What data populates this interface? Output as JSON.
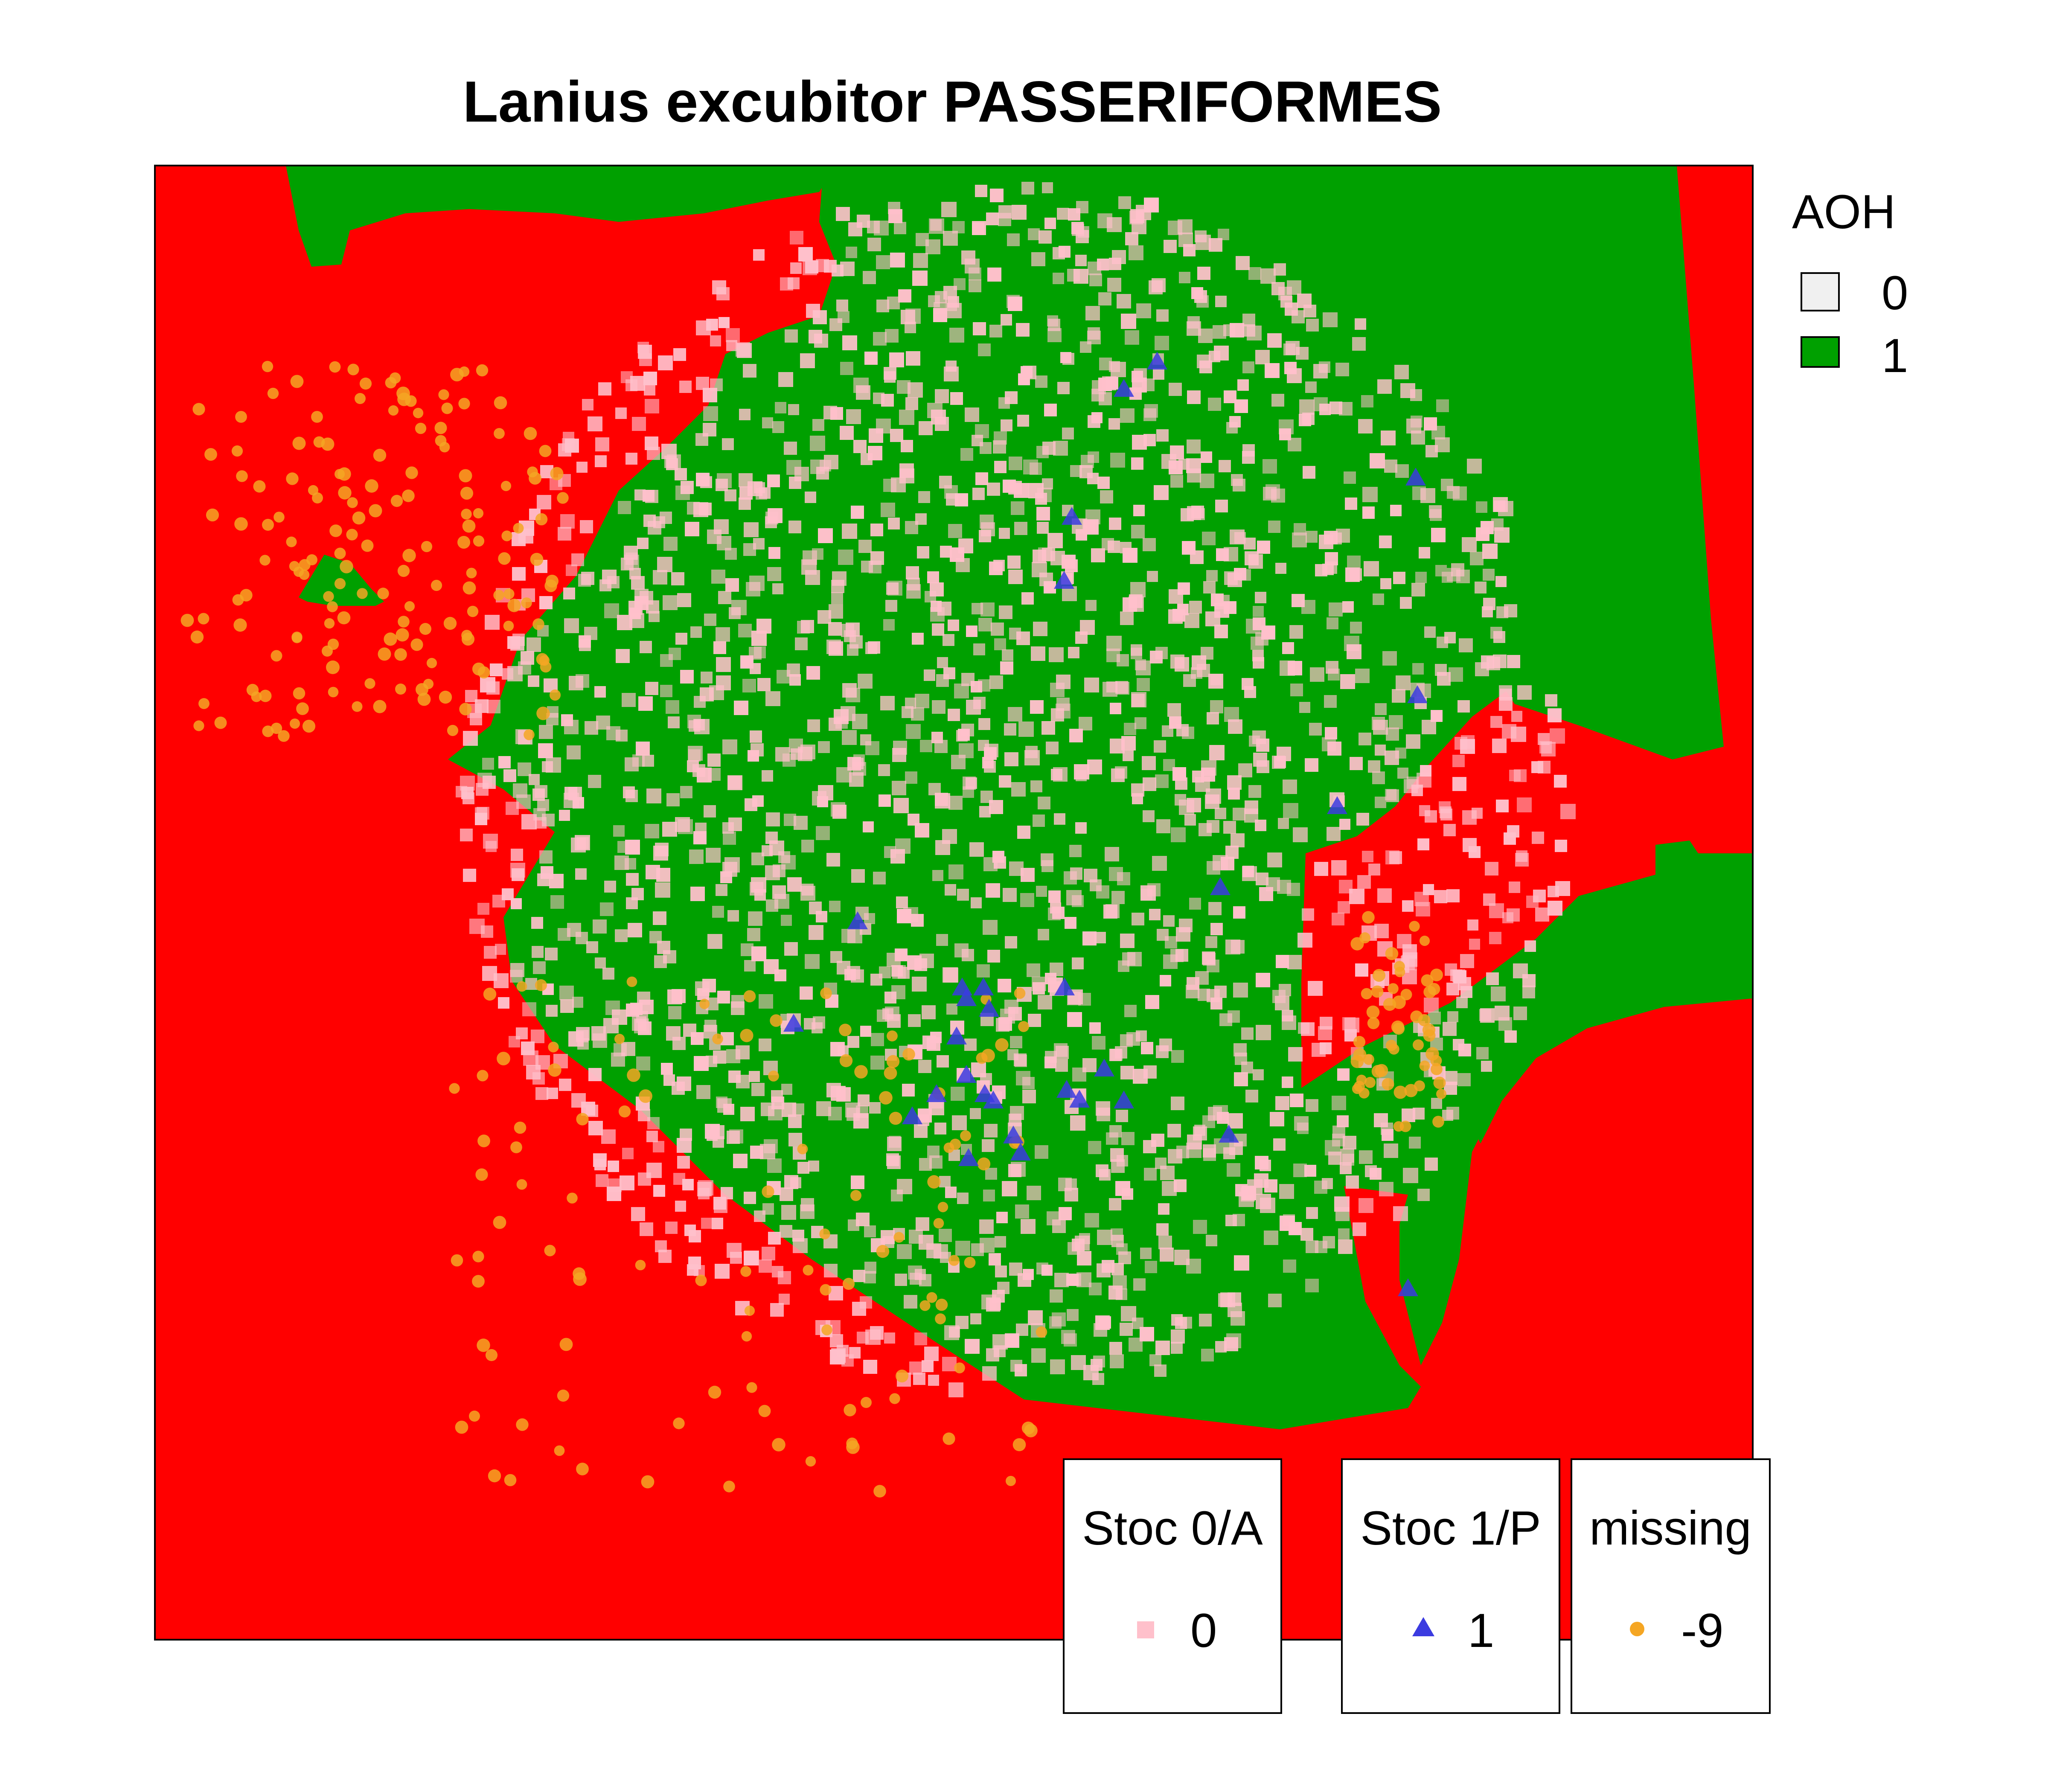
{
  "title": "Lanius excubitor PASSERIFORMES",
  "colors": {
    "aoh_0": "#ff0000",
    "aoh_1": "#00a000",
    "stoc_0": "#ffc0cb",
    "stoc_1": "#3b3be0",
    "missing": "#f5a623"
  },
  "legends": {
    "aoh": {
      "title": "AOH",
      "items": [
        {
          "label": "0",
          "color": "#f0f0f0"
        },
        {
          "label": "1",
          "color": "#00a000"
        }
      ]
    },
    "stoc0": {
      "title": "Stoc 0/A",
      "label": "0"
    },
    "stoc1": {
      "title": "Stoc 1/P",
      "label": "1"
    },
    "missing": {
      "title": "missing",
      "label": "-9"
    }
  },
  "chart_data": {
    "type": "map",
    "title": "Lanius excubitor PASSERIFORMES",
    "raster_legend": {
      "title": "AOH",
      "classes": [
        "0",
        "1"
      ]
    },
    "point_layers": [
      {
        "name": "Stoc 0/A",
        "value": "0",
        "symbol": "square",
        "color": "#ffc0cb",
        "count": 2200
      },
      {
        "name": "Stoc 1/P",
        "value": "1",
        "symbol": "triangle",
        "color": "#3b3be0",
        "count": 30
      },
      {
        "name": "missing",
        "value": "-9",
        "symbol": "circle",
        "color": "#f5a623",
        "count": 330
      }
    ]
  }
}
